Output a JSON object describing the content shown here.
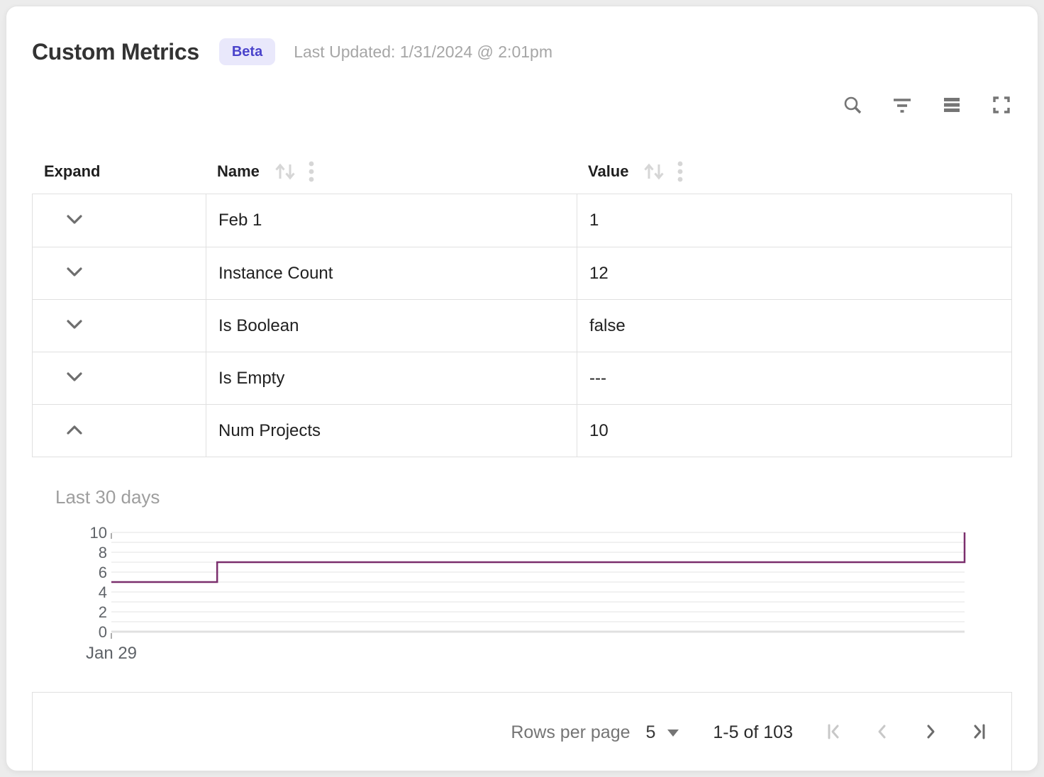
{
  "header": {
    "title": "Custom Metrics",
    "badge": "Beta",
    "last_updated": "Last Updated: 1/31/2024 @ 2:01pm"
  },
  "toolbar": {
    "icons": [
      "search-icon",
      "filter-icon",
      "density-icon",
      "fullscreen-icon"
    ]
  },
  "table": {
    "columns": [
      {
        "label": "Expand",
        "sortable": false
      },
      {
        "label": "Name",
        "sortable": true
      },
      {
        "label": "Value",
        "sortable": true
      }
    ],
    "rows": [
      {
        "name": "Feb 1",
        "value": "1",
        "expanded": false
      },
      {
        "name": "Instance Count",
        "value": "12",
        "expanded": false
      },
      {
        "name": "Is Boolean",
        "value": "false",
        "expanded": false
      },
      {
        "name": "Is Empty",
        "value": "---",
        "expanded": false
      },
      {
        "name": "Num Projects",
        "value": "10",
        "expanded": true
      }
    ]
  },
  "chart_data": {
    "type": "line",
    "subtype": "step",
    "title": "Last 30 days",
    "series": [
      {
        "name": "Num Projects",
        "points": [
          {
            "x": 0,
            "y": 5
          },
          {
            "x": 0.124,
            "y": 5
          },
          {
            "x": 0.124,
            "y": 7
          },
          {
            "x": 1,
            "y": 7
          },
          {
            "x": 1,
            "y": 10
          }
        ]
      }
    ],
    "ylim": [
      0,
      10
    ],
    "y_ticks": [
      0,
      2,
      4,
      6,
      8,
      10
    ],
    "y_gridline_step": 1,
    "x_tick_labels": [
      "Jan 29"
    ],
    "grid": "horizontal",
    "legend": "none",
    "line_color": "#7b2f6d"
  },
  "footer": {
    "rows_per_page_label": "Rows per page",
    "rows_per_page_value": "5",
    "range_label": "1-5 of 103",
    "pagination": [
      {
        "name": "first-page",
        "enabled": false
      },
      {
        "name": "previous-page",
        "enabled": false
      },
      {
        "name": "next-page",
        "enabled": true
      },
      {
        "name": "last-page",
        "enabled": true
      }
    ]
  },
  "colors": {
    "line": "#7b2f6d",
    "badge_bg": "#e9e8fb",
    "badge_text": "#4a43cb",
    "border": "#e0e0e0"
  }
}
